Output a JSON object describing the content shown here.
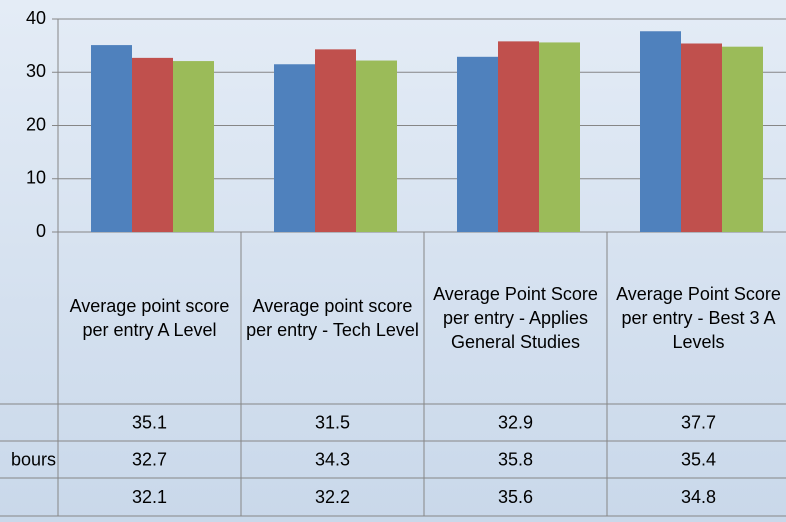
{
  "chart_data": {
    "type": "bar",
    "categories": [
      "Average point score per entry A Level",
      "Average point score per entry - Tech Level",
      "Average Point Score per entry - Applies General Studies",
      "Average Point Score per entry - Best 3 A Levels"
    ],
    "series": [
      {
        "color": "#4f81bd",
        "values": [
          35.1,
          31.5,
          32.9,
          37.7
        ]
      },
      {
        "name": "bours",
        "color": "#c0504d",
        "values": [
          32.7,
          34.3,
          35.8,
          35.4
        ]
      },
      {
        "color": "#9bbb59",
        "values": [
          32.1,
          32.2,
          35.6,
          34.8
        ]
      }
    ],
    "ylim": [
      0,
      40
    ],
    "yticks": [
      0,
      10,
      20,
      30,
      40
    ],
    "grid": true
  }
}
